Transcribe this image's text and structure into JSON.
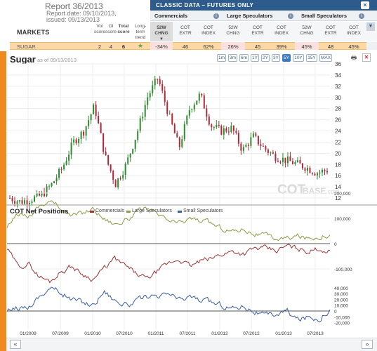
{
  "report": {
    "title": "Report 36/2013",
    "date": "Report date: 09/10/2013,",
    "issued": "issued: 09/13/2013"
  },
  "table": {
    "markets_label": "MARKETS",
    "score_headers": [
      [
        "Vol",
        "score"
      ],
      [
        "OI",
        "score"
      ],
      [
        "Total",
        "score"
      ],
      [
        "Long-",
        "term",
        "trend"
      ]
    ],
    "blue_title": "CLASSIC DATA – FUTURES ONLY",
    "groups": [
      "Commercials",
      "Large Speculators",
      "Small Speculators"
    ],
    "sub_headers": [
      [
        "52W",
        "CHNG"
      ],
      [
        "COT",
        "EXTR"
      ],
      [
        "COT",
        "INDEX"
      ],
      [
        "52W",
        "CHNG"
      ],
      [
        "COT",
        "EXTR"
      ],
      [
        "COT",
        "INDEX"
      ],
      [
        "52W",
        "CHNG"
      ],
      [
        "COT",
        "EXTR"
      ],
      [
        "COT",
        "INDEX"
      ]
    ],
    "row": {
      "market": "SUGAR",
      "vol": "2",
      "oi": "4",
      "total": "6",
      "trend_icon": "star-icon",
      "values": [
        "-34%",
        "46",
        "62%",
        "26%",
        "45",
        "39%",
        "45%",
        "48",
        "45%"
      ]
    }
  },
  "chart_header": {
    "title": "Sugar",
    "as_of": "as of 09/13/2013",
    "periods": [
      "1m",
      "3m",
      "6m",
      "1Y",
      "2Y",
      "3Y",
      "5Y",
      "10Y",
      "15Y",
      "MAX"
    ],
    "active_period": "5Y",
    "watermark_a": "COT",
    "watermark_b": "BASE",
    "watermark_c": ".com"
  },
  "colors": {
    "accent_orange": "#ef8a1f",
    "header_blue": "#2d5c8c",
    "price_up": "#2e8b2e",
    "price_down": "#b0283a",
    "commercials": "#9b3232",
    "large_speculators": "#8d9a45",
    "small_speculators": "#3a5ea0"
  },
  "chart_data": [
    {
      "type": "candlestick",
      "title": "Sugar",
      "ylim": [
        11,
        36
      ],
      "y_ticks": [
        12,
        14,
        16,
        18,
        20,
        22,
        24,
        26,
        28,
        30,
        32,
        34,
        36
      ],
      "x": [
        "2008-09",
        "2008-11",
        "2009-01",
        "2009-03",
        "2009-05",
        "2009-07",
        "2009-09",
        "2009-11",
        "2010-01",
        "2010-03",
        "2010-05",
        "2010-07",
        "2010-09",
        "2010-11",
        "2011-01",
        "2011-03",
        "2011-05",
        "2011-07",
        "2011-09",
        "2011-11",
        "2012-01",
        "2012-03",
        "2012-05",
        "2012-07",
        "2012-09",
        "2012-11",
        "2013-01",
        "2013-03",
        "2013-05",
        "2013-07",
        "2013-09"
      ],
      "close": [
        12.0,
        11.3,
        11.8,
        12.5,
        14.5,
        17.5,
        22.0,
        24.0,
        28.5,
        19.5,
        14.5,
        18.0,
        23.5,
        30.0,
        33.5,
        27.0,
        21.0,
        28.0,
        30.5,
        25.0,
        24.0,
        24.5,
        20.5,
        23.0,
        21.0,
        19.5,
        18.8,
        18.2,
        17.5,
        16.5,
        17.0
      ]
    },
    {
      "type": "line",
      "title": "COT Net Positions",
      "series": [
        {
          "name": "Commercials",
          "y_ticks": [
            -100000,
            0
          ],
          "ylim": [
            -160000,
            0
          ],
          "values": [
            -20000,
            -90000,
            -80000,
            -130000,
            -150000,
            -110000,
            -90000,
            -120000,
            -140000,
            -100000,
            -60000,
            -90000,
            -120000,
            -140000,
            -110000,
            -80000,
            -60000,
            -90000,
            -70000,
            -60000,
            -40000,
            -30000,
            -40000,
            -20000,
            -20000,
            -30000,
            -10000,
            -20000,
            -30000,
            -20000,
            -30000
          ]
        },
        {
          "name": "Large Speculators",
          "y_ticks": [
            0,
            100000,
            200000
          ],
          "ylim": [
            0,
            220000
          ],
          "values": [
            60000,
            120000,
            110000,
            150000,
            170000,
            140000,
            110000,
            120000,
            140000,
            100000,
            80000,
            90000,
            120000,
            140000,
            110000,
            90000,
            80000,
            100000,
            90000,
            80000,
            60000,
            50000,
            60000,
            40000,
            30000,
            20000,
            20000,
            30000,
            20000,
            30000,
            40000
          ]
        },
        {
          "name": "Small Speculators",
          "y_ticks": [
            -20000,
            -10000,
            0,
            10000,
            20000,
            30000,
            40000
          ],
          "ylim": [
            -25000,
            45000
          ],
          "values": [
            -2000,
            5000,
            8000,
            25000,
            40000,
            32000,
            20000,
            15000,
            10000,
            35000,
            20000,
            10000,
            15000,
            25000,
            20000,
            30000,
            18000,
            25000,
            18000,
            15000,
            10000,
            5000,
            10000,
            0,
            -10000,
            -5000,
            0,
            -15000,
            -10000,
            -12000,
            5000
          ]
        }
      ]
    }
  ],
  "x_axis_labels": [
    "01/2009",
    "07/2009",
    "01/2010",
    "07/2010",
    "01/2011",
    "07/2011",
    "01/2012",
    "07/2012",
    "01/2013",
    "07/2013"
  ],
  "cot_legend": [
    "Commercials",
    "Large Speculators",
    "Small Speculators"
  ],
  "commercials_ticks": [
    "-100,000"
  ],
  "large_spec_ticks": [
    "200,000",
    "100,000",
    "0"
  ],
  "small_spec_ticks": [
    "40,000",
    "30,000",
    "20,000",
    "10,000",
    "0",
    "-10,000",
    "-20,000"
  ],
  "nav": {
    "prev": "«",
    "next": "»"
  }
}
